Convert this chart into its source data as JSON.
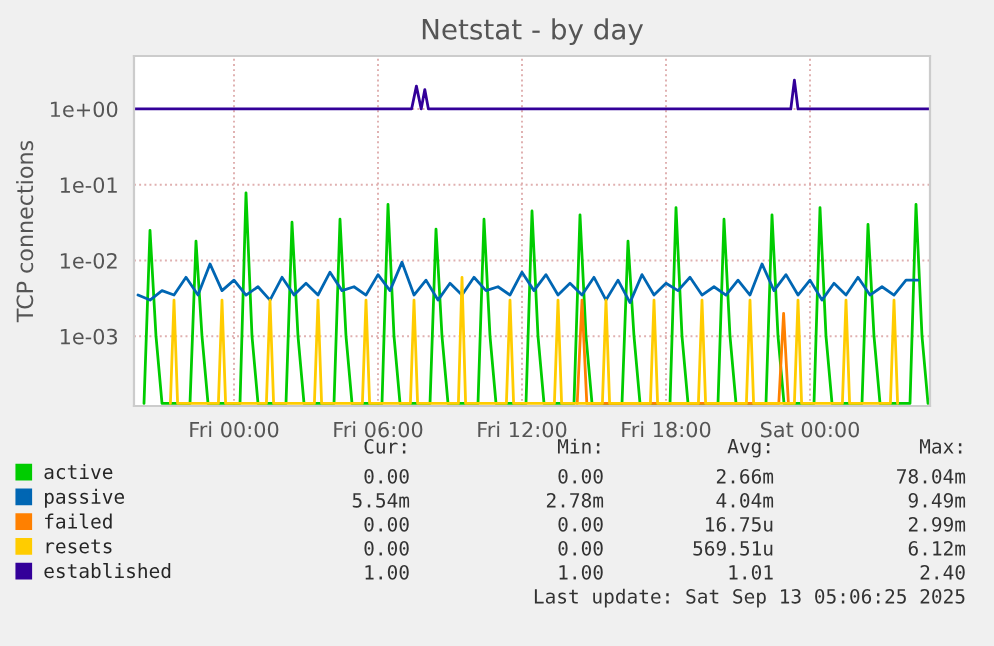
{
  "chart_data": {
    "type": "line",
    "title": "Netstat - by day",
    "ylabel": "TCP connections",
    "log": "y",
    "grid": true,
    "legend": "bottom",
    "marker": "none",
    "line_style": "solid",
    "xlim": [
      "2025-09-11T19:50",
      "2025-09-13T05:00"
    ],
    "xticks": [
      {
        "value": "2025-09-12T00:00",
        "label": "Fri 00:00"
      },
      {
        "value": "2025-09-12T06:00",
        "label": "Fri 06:00"
      },
      {
        "value": "2025-09-12T12:00",
        "label": "Fri 12:00"
      },
      {
        "value": "2025-09-12T18:00",
        "label": "Fri 18:00"
      },
      {
        "value": "2025-09-13T00:00",
        "label": "Sat 00:00"
      }
    ],
    "ylim": [
      0.00012,
      5
    ],
    "yticks": [
      {
        "value": 0.001,
        "label": "1e-03"
      },
      {
        "value": 0.01,
        "label": "1e-02"
      },
      {
        "value": 0.1,
        "label": "1e-01"
      },
      {
        "value": 1,
        "label": "1e+00"
      }
    ],
    "series": [
      {
        "name": "active",
        "color": "#00cc00",
        "x": [
          "2025-09-11T20:15",
          "2025-09-11T20:30",
          "2025-09-11T20:45",
          "2025-09-11T21:00",
          "2025-09-11T22:10",
          "2025-09-11T22:25",
          "2025-09-11T22:40",
          "2025-09-11T22:55",
          "2025-09-12T00:15",
          "2025-09-12T00:30",
          "2025-09-12T00:45",
          "2025-09-12T01:00",
          "2025-09-12T02:10",
          "2025-09-12T02:25",
          "2025-09-12T02:40",
          "2025-09-12T02:55",
          "2025-09-12T04:10",
          "2025-09-12T04:25",
          "2025-09-12T04:40",
          "2025-09-12T04:55",
          "2025-09-12T06:10",
          "2025-09-12T06:25",
          "2025-09-12T06:40",
          "2025-09-12T06:55",
          "2025-09-12T08:10",
          "2025-09-12T08:25",
          "2025-09-12T08:40",
          "2025-09-12T08:55",
          "2025-09-12T10:10",
          "2025-09-12T10:25",
          "2025-09-12T10:40",
          "2025-09-12T10:55",
          "2025-09-12T12:10",
          "2025-09-12T12:25",
          "2025-09-12T12:40",
          "2025-09-12T12:55",
          "2025-09-12T14:10",
          "2025-09-12T14:25",
          "2025-09-12T14:40",
          "2025-09-12T14:55",
          "2025-09-12T16:10",
          "2025-09-12T16:25",
          "2025-09-12T16:40",
          "2025-09-12T16:55",
          "2025-09-12T18:10",
          "2025-09-12T18:25",
          "2025-09-12T18:40",
          "2025-09-12T18:55",
          "2025-09-12T20:10",
          "2025-09-12T20:25",
          "2025-09-12T20:40",
          "2025-09-12T20:55",
          "2025-09-12T22:10",
          "2025-09-12T22:25",
          "2025-09-12T22:40",
          "2025-09-12T22:55",
          "2025-09-13T00:10",
          "2025-09-13T00:25",
          "2025-09-13T00:40",
          "2025-09-13T00:55",
          "2025-09-13T02:10",
          "2025-09-13T02:25",
          "2025-09-13T02:40",
          "2025-09-13T02:55",
          "2025-09-13T04:10",
          "2025-09-13T04:25",
          "2025-09-13T04:40",
          "2025-09-13T04:55"
        ],
        "values": [
          0.00013,
          0.025,
          0.001,
          0.00013,
          0.00013,
          0.018,
          0.001,
          0.00013,
          0.00013,
          0.078,
          0.001,
          0.00013,
          0.00013,
          0.032,
          0.001,
          0.00013,
          0.00013,
          0.035,
          0.001,
          0.00013,
          0.00013,
          0.055,
          0.001,
          0.00013,
          0.00013,
          0.026,
          0.001,
          0.00013,
          0.00013,
          0.035,
          0.001,
          0.00013,
          0.00013,
          0.045,
          0.001,
          0.00013,
          0.00013,
          0.04,
          0.001,
          0.00013,
          0.00013,
          0.018,
          0.001,
          0.00013,
          0.00013,
          0.05,
          0.001,
          0.00013,
          0.00013,
          0.035,
          0.001,
          0.00013,
          0.00013,
          0.04,
          0.001,
          0.00013,
          0.00013,
          0.05,
          0.001,
          0.00013,
          0.00013,
          0.03,
          0.001,
          0.00013,
          0.00013,
          0.055,
          0.001,
          0.00013
        ]
      },
      {
        "name": "passive",
        "color": "#0066b3",
        "x": [
          "2025-09-11T20:00",
          "2025-09-11T20:30",
          "2025-09-11T21:00",
          "2025-09-11T21:30",
          "2025-09-11T22:00",
          "2025-09-11T22:30",
          "2025-09-11T23:00",
          "2025-09-11T23:30",
          "2025-09-12T00:00",
          "2025-09-12T00:30",
          "2025-09-12T01:00",
          "2025-09-12T01:30",
          "2025-09-12T02:00",
          "2025-09-12T02:30",
          "2025-09-12T03:00",
          "2025-09-12T03:30",
          "2025-09-12T04:00",
          "2025-09-12T04:30",
          "2025-09-12T05:00",
          "2025-09-12T05:30",
          "2025-09-12T06:00",
          "2025-09-12T06:30",
          "2025-09-12T07:00",
          "2025-09-12T07:30",
          "2025-09-12T08:00",
          "2025-09-12T08:30",
          "2025-09-12T09:00",
          "2025-09-12T09:30",
          "2025-09-12T10:00",
          "2025-09-12T10:30",
          "2025-09-12T11:00",
          "2025-09-12T11:30",
          "2025-09-12T12:00",
          "2025-09-12T12:30",
          "2025-09-12T13:00",
          "2025-09-12T13:30",
          "2025-09-12T14:00",
          "2025-09-12T14:30",
          "2025-09-12T15:00",
          "2025-09-12T15:30",
          "2025-09-12T16:00",
          "2025-09-12T16:30",
          "2025-09-12T17:00",
          "2025-09-12T17:30",
          "2025-09-12T18:00",
          "2025-09-12T18:30",
          "2025-09-12T19:00",
          "2025-09-12T19:30",
          "2025-09-12T20:00",
          "2025-09-12T20:30",
          "2025-09-12T21:00",
          "2025-09-12T21:30",
          "2025-09-12T22:00",
          "2025-09-12T22:30",
          "2025-09-12T23:00",
          "2025-09-12T23:30",
          "2025-09-13T00:00",
          "2025-09-13T00:30",
          "2025-09-13T01:00",
          "2025-09-13T01:30",
          "2025-09-13T02:00",
          "2025-09-13T02:30",
          "2025-09-13T03:00",
          "2025-09-13T03:30",
          "2025-09-13T04:00",
          "2025-09-13T04:30"
        ],
        "values": [
          0.0035,
          0.003,
          0.004,
          0.0035,
          0.006,
          0.0035,
          0.009,
          0.004,
          0.0055,
          0.0035,
          0.0045,
          0.003,
          0.006,
          0.0035,
          0.005,
          0.0035,
          0.007,
          0.004,
          0.0045,
          0.0035,
          0.0065,
          0.004,
          0.0095,
          0.0035,
          0.0055,
          0.003,
          0.005,
          0.0035,
          0.006,
          0.004,
          0.0045,
          0.0035,
          0.007,
          0.004,
          0.0065,
          0.0035,
          0.005,
          0.0035,
          0.006,
          0.003,
          0.0055,
          0.00278,
          0.0065,
          0.0035,
          0.005,
          0.004,
          0.006,
          0.0035,
          0.0045,
          0.0035,
          0.0055,
          0.0035,
          0.009,
          0.004,
          0.0065,
          0.0035,
          0.0055,
          0.003,
          0.005,
          0.0035,
          0.006,
          0.0035,
          0.0045,
          0.0035,
          0.0055,
          0.0055
        ]
      },
      {
        "name": "failed",
        "color": "#ff8000",
        "x": [
          "2025-09-12T14:18",
          "2025-09-12T14:30",
          "2025-09-12T14:42",
          "2025-09-12T22:42",
          "2025-09-12T22:54",
          "2025-09-12T23:06"
        ],
        "values": [
          0.00013,
          0.003,
          0.00013,
          0.00013,
          0.002,
          0.00013
        ]
      },
      {
        "name": "resets",
        "color": "#ffcc00",
        "x": [
          "2025-09-11T21:21",
          "2025-09-11T21:30",
          "2025-09-11T21:39",
          "2025-09-11T23:21",
          "2025-09-11T23:30",
          "2025-09-11T23:39",
          "2025-09-12T01:21",
          "2025-09-12T01:30",
          "2025-09-12T01:39",
          "2025-09-12T03:21",
          "2025-09-12T03:30",
          "2025-09-12T03:39",
          "2025-09-12T05:21",
          "2025-09-12T05:30",
          "2025-09-12T05:39",
          "2025-09-12T07:21",
          "2025-09-12T07:30",
          "2025-09-12T07:39",
          "2025-09-12T09:21",
          "2025-09-12T09:30",
          "2025-09-12T09:39",
          "2025-09-12T11:21",
          "2025-09-12T11:30",
          "2025-09-12T11:39",
          "2025-09-12T13:21",
          "2025-09-12T13:30",
          "2025-09-12T13:39",
          "2025-09-12T15:21",
          "2025-09-12T15:30",
          "2025-09-12T15:39",
          "2025-09-12T17:21",
          "2025-09-12T17:30",
          "2025-09-12T17:39",
          "2025-09-12T19:21",
          "2025-09-12T19:30",
          "2025-09-12T19:39",
          "2025-09-12T21:21",
          "2025-09-12T21:30",
          "2025-09-12T21:39",
          "2025-09-12T23:21",
          "2025-09-12T23:30",
          "2025-09-12T23:39",
          "2025-09-13T01:21",
          "2025-09-13T01:30",
          "2025-09-13T01:39",
          "2025-09-13T03:21",
          "2025-09-13T03:30",
          "2025-09-13T03:39"
        ],
        "values": [
          0.00013,
          0.003,
          0.00013,
          0.00013,
          0.003,
          0.00013,
          0.00013,
          0.003,
          0.00013,
          0.00013,
          0.003,
          0.00013,
          0.00013,
          0.003,
          0.00013,
          0.00013,
          0.003,
          0.00013,
          0.00013,
          0.006,
          0.00013,
          0.00013,
          0.003,
          0.00013,
          0.00013,
          0.003,
          0.00013,
          0.00013,
          0.003,
          0.00013,
          0.00013,
          0.003,
          0.00013,
          0.00013,
          0.003,
          0.00013,
          0.00013,
          0.003,
          0.00013,
          0.00013,
          0.003,
          0.00013,
          0.00013,
          0.003,
          0.00013,
          0.00013,
          0.003,
          0.00013
        ]
      },
      {
        "name": "established",
        "color": "#330099",
        "x": [
          "2025-09-11T19:50",
          "2025-09-12T07:24",
          "2025-09-12T07:36",
          "2025-09-12T07:48",
          "2025-09-12T07:57",
          "2025-09-12T08:06",
          "2025-09-12T08:18",
          "2025-09-12T23:12",
          "2025-09-12T23:21",
          "2025-09-12T23:30",
          "2025-09-13T05:00"
        ],
        "values": [
          1,
          1,
          2,
          1,
          1.8,
          1,
          1,
          1,
          2.4,
          1,
          1
        ]
      }
    ],
    "annotations": [
      "Cur:",
      "Min:",
      "Avg:",
      "Max:",
      "0.00",
      "0.00",
      "2.66m",
      "78.04m",
      "5.54m",
      "2.78m",
      "4.04m",
      "9.49m",
      "0.00",
      "0.00",
      "16.75u",
      "2.99m",
      "0.00",
      "0.00",
      "569.51u",
      "6.12m",
      "1.00",
      "1.00",
      "1.01",
      "2.40",
      "Last update: Sat Sep 13 05:06:25 2025"
    ]
  }
}
